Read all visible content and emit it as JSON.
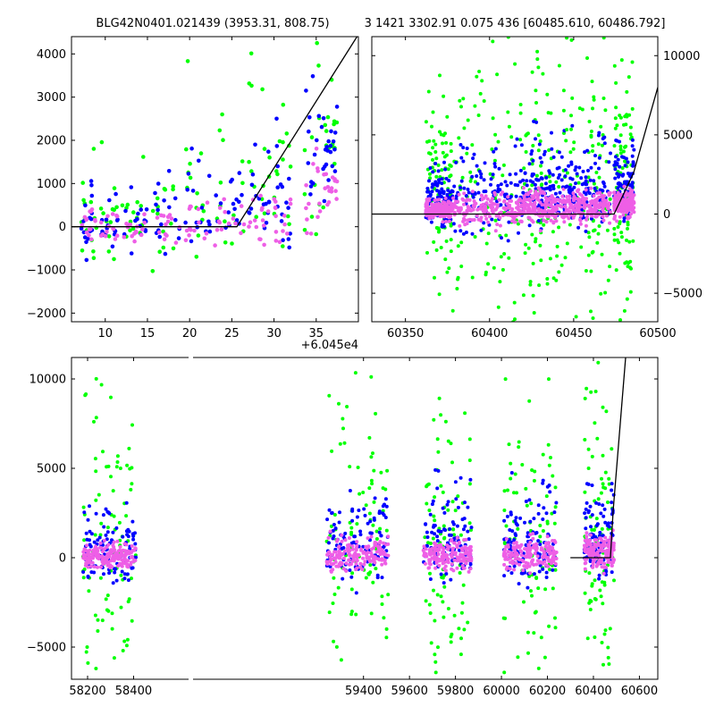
{
  "title_left": "BLG42N0401.021439 (3953.31, 808.75)",
  "title_right": "3 1421 3302.91 0.075 436 [60485.610, 60486.792]",
  "colors": {
    "green": "#00ff00",
    "blue": "#0000ff",
    "pink": "#ee5fe6",
    "model": "#000000"
  },
  "chart_data": [
    {
      "type": "scatter",
      "panel": "top-left",
      "xlim": [
        6,
        40
      ],
      "ylim": [
        -2200,
        4400
      ],
      "x_offset_label": "+6.045e4",
      "xticks": [
        10,
        15,
        20,
        25,
        30,
        35
      ],
      "yticks": [
        -2000,
        -1000,
        0,
        1000,
        2000,
        3000,
        4000
      ],
      "x_tick_labels": [
        "10",
        "15",
        "20",
        "25",
        "30",
        "35"
      ],
      "y_tick_labels": [
        "−2000",
        "−1000",
        "0",
        "1000",
        "2000",
        "3000",
        "4000"
      ],
      "clusters": [
        {
          "x": [
            7.0,
            9.0
          ],
          "y": [
            -700,
            900
          ]
        },
        {
          "x": [
            9.5,
            11.5
          ],
          "y": [
            -500,
            800
          ]
        },
        {
          "x": [
            12.0,
            15.0
          ],
          "y": [
            -600,
            700
          ]
        },
        {
          "x": [
            15.5,
            19.0
          ],
          "y": [
            -800,
            900
          ]
        },
        {
          "x": [
            19.5,
            22.5
          ],
          "y": [
            -500,
            1700
          ]
        },
        {
          "x": [
            23.0,
            26.5
          ],
          "y": [
            -400,
            1500
          ]
        },
        {
          "x": [
            27.0,
            29.5
          ],
          "y": [
            -400,
            2000
          ]
        },
        {
          "x": [
            30.0,
            32.0
          ],
          "y": [
            -500,
            2200
          ]
        },
        {
          "x": [
            33.5,
            36.0
          ],
          "y": [
            0,
            4000
          ]
        },
        {
          "x": [
            36.0,
            37.5
          ],
          "y": [
            1800,
            3600
          ]
        }
      ],
      "model_line": {
        "x": [
          6,
          25.6,
          40
        ],
        "y": [
          0,
          0,
          4450
        ]
      }
    },
    {
      "type": "scatter",
      "panel": "top-right",
      "xlim": [
        60330,
        60500
      ],
      "ylim": [
        -6800,
        11200
      ],
      "xticks": [
        60350,
        60400,
        60450,
        60500
      ],
      "yticks": [
        -5000,
        0,
        5000,
        10000
      ],
      "x_tick_labels": [
        "60350",
        "60400",
        "60450",
        "60500"
      ],
      "y_tick_labels": [
        "−5000",
        "0",
        "5000",
        "10000"
      ],
      "clusters": [
        {
          "x": [
            60362,
            60378
          ],
          "y": [
            -800,
            2800
          ]
        },
        {
          "x": [
            60378,
            60420
          ],
          "y": [
            -1500,
            4000
          ]
        },
        {
          "x": [
            60420,
            60445
          ],
          "y": [
            -1200,
            4500
          ]
        },
        {
          "x": [
            60445,
            60472
          ],
          "y": [
            -1000,
            4500
          ]
        },
        {
          "x": [
            60474,
            60486
          ],
          "y": [
            -300,
            4500
          ]
        }
      ],
      "model_line": {
        "x": [
          60330,
          60474,
          60485.6,
          60500
        ],
        "y": [
          0,
          0,
          2600,
          8000
        ]
      }
    },
    {
      "type": "scatter",
      "panel": "bottom",
      "xlim": [
        58130,
        60680
      ],
      "ylim": [
        -6800,
        11200
      ],
      "xticks": [
        58200,
        58400,
        59400,
        59600,
        59800,
        60000,
        60200,
        60400,
        60600
      ],
      "yticks": [
        -5000,
        0,
        5000,
        10000
      ],
      "x_tick_labels": [
        "58200",
        "58400",
        "59400",
        "59600",
        "59800",
        "60000",
        "60200",
        "60400",
        "60600"
      ],
      "y_tick_labels": [
        "−5000",
        "0",
        "5000",
        "10000"
      ],
      "clusters": [
        {
          "x": [
            58180,
            58410
          ],
          "y": [
            -1800,
            2400
          ]
        },
        {
          "x": [
            59240,
            59510
          ],
          "y": [
            -1800,
            3200
          ]
        },
        {
          "x": [
            59660,
            59870
          ],
          "y": [
            -2000,
            3300
          ]
        },
        {
          "x": [
            60010,
            60240
          ],
          "y": [
            -2000,
            3300
          ]
        },
        {
          "x": [
            60360,
            60490
          ],
          "y": [
            -1500,
            3500
          ]
        }
      ],
      "model_line": {
        "x": [
          60300,
          60474,
          60485.6,
          60540
        ],
        "y": [
          0,
          0,
          2600,
          11200
        ]
      }
    }
  ]
}
